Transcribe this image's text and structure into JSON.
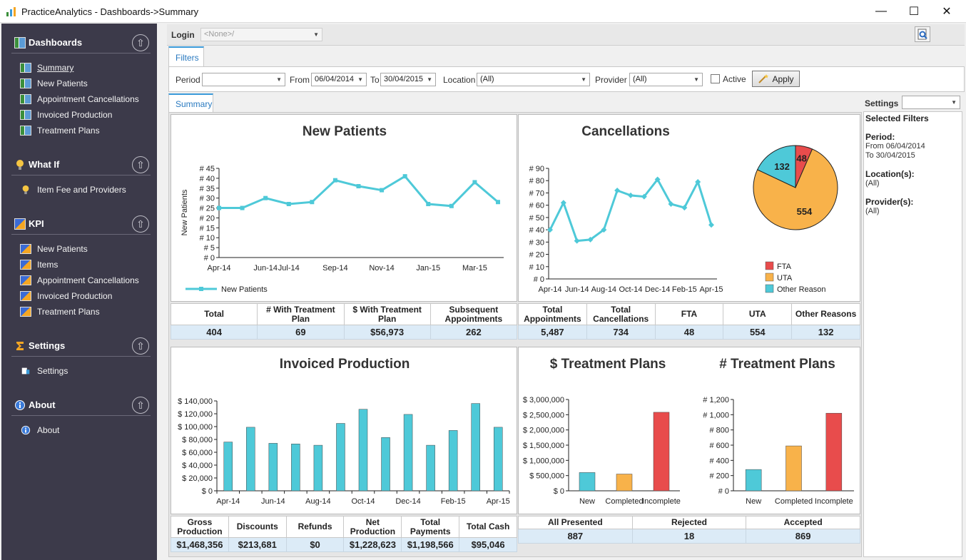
{
  "window": {
    "title": "PracticeAnalytics - Dashboards->Summary",
    "minimize": "—",
    "maximize": "☐",
    "close": "✕"
  },
  "sidebar": {
    "sections": [
      {
        "label": "Dashboards",
        "items": [
          "Summary",
          "New Patients",
          "Appointment Cancellations",
          "Invoiced Production",
          "Treatment Plans"
        ]
      },
      {
        "label": "What If",
        "items": [
          "Item Fee and Providers"
        ]
      },
      {
        "label": "KPI",
        "items": [
          "New Patients",
          "Items",
          "Appointment Cancellations",
          "Invoiced Production",
          "Treatment Plans"
        ]
      },
      {
        "label": "Settings",
        "items": [
          "Settings"
        ]
      },
      {
        "label": "About",
        "items": [
          "About"
        ]
      }
    ],
    "collapse_glyph": "⇧"
  },
  "toolbar": {
    "login_label": "Login",
    "login_value": "<None>/"
  },
  "tabs": {
    "filters": "Filters",
    "summary": "Summary"
  },
  "filters": {
    "period_label": "Period",
    "period_value": "",
    "from_label": "From",
    "from_value": "06/04/2014",
    "to_label": "To",
    "to_value": "30/04/2015",
    "location_label": "Location",
    "location_value": "(All)",
    "provider_label": "Provider",
    "provider_value": "(All)",
    "active_label": "Active",
    "apply_label": "Apply"
  },
  "settings": {
    "label": "Settings",
    "value": "",
    "selected_filters": "Selected Filters",
    "period_h": "Period:",
    "period_from": "From 06/04/2014",
    "period_to": "To 30/04/2015",
    "location_h": "Location(s):",
    "location_v": "(All)",
    "provider_h": "Provider(s):",
    "provider_v": "(All)"
  },
  "panels": {
    "new_patients": {
      "title": "New Patients",
      "stats_headers": [
        "Total",
        "# With Treatment Plan",
        "$ With Treatment Plan",
        "Subsequent Appointments"
      ],
      "stats_values": [
        "404",
        "69",
        "$56,973",
        "262"
      ]
    },
    "cancellations": {
      "title": "Cancellations",
      "stats_headers": [
        "Total Appointments",
        "Total Cancellations",
        "FTA",
        "UTA",
        "Other Reasons"
      ],
      "stats_values": [
        "5,487",
        "734",
        "48",
        "554",
        "132"
      ]
    },
    "invoiced": {
      "title": "Invoiced Production",
      "stats_headers": [
        "Gross Production",
        "Discounts",
        "Refunds",
        "Net Production",
        "Total Payments",
        "Total Cash"
      ],
      "stats_values": [
        "$1,468,356",
        "$213,681",
        "$0",
        "$1,228,623",
        "$1,198,566",
        "$95,046"
      ]
    },
    "treatment": {
      "title_dollar": "$ Treatment Plans",
      "title_count": "# Treatment Plans",
      "stats_headers": [
        "All Presented",
        "Rejected",
        "Accepted"
      ],
      "stats_values": [
        "887",
        "18",
        "869"
      ]
    }
  },
  "colors": {
    "accent": "#3a9ad9",
    "line": "#4ec9d8",
    "bar": "#4ec9d8",
    "fta": "#e84c4c",
    "uta": "#f8b24a",
    "other": "#4ec9d8",
    "sidebar": "#3c3a4a"
  },
  "chart_data": [
    {
      "id": "new_patients",
      "type": "line",
      "x": [
        "Apr-14",
        "May-14",
        "Jun-14",
        "Jul-14",
        "Aug-14",
        "Sep-14",
        "Oct-14",
        "Nov-14",
        "Dec-14",
        "Jan-15",
        "Feb-15",
        "Mar-15",
        "Apr-15"
      ],
      "xticks": [
        "Apr-14",
        "Jun-14",
        "Jul-14",
        "Sep-14",
        "Nov-14",
        "Jan-15",
        "Mar-15"
      ],
      "series": [
        {
          "name": "New Patients",
          "values": [
            25,
            25,
            30,
            27,
            28,
            39,
            36,
            34,
            41,
            27,
            26,
            38,
            28
          ]
        }
      ],
      "ylabel": "New Patients",
      "ylim": [
        0,
        45
      ],
      "yticks": [
        "# 0",
        "# 5",
        "# 10",
        "# 15",
        "# 20",
        "# 25",
        "# 30",
        "# 35",
        "# 40",
        "# 45"
      ]
    },
    {
      "id": "cancellations_line",
      "type": "line",
      "x": [
        "Apr-14",
        "May-14",
        "Jun-14",
        "Jul-14",
        "Aug-14",
        "Sep-14",
        "Oct-14",
        "Nov-14",
        "Dec-14",
        "Jan-15",
        "Feb-15",
        "Mar-15",
        "Apr-15"
      ],
      "xticks": [
        "Apr-14",
        "Jun-14",
        "Aug-14",
        "Oct-14",
        "Dec-14",
        "Feb-15",
        "Apr-15"
      ],
      "values": [
        40,
        62,
        31,
        32,
        40,
        72,
        68,
        67,
        81,
        61,
        58,
        79,
        44
      ],
      "ylim": [
        0,
        90
      ],
      "yticks": [
        "# 0",
        "# 10",
        "# 20",
        "# 30",
        "# 40",
        "# 50",
        "# 60",
        "# 70",
        "# 80",
        "# 90"
      ]
    },
    {
      "id": "cancellations_pie",
      "type": "pie",
      "labels": [
        "FTA",
        "UTA",
        "Other Reason"
      ],
      "values": [
        48,
        554,
        132
      ]
    },
    {
      "id": "invoiced",
      "type": "bar",
      "categories": [
        "Apr-14",
        "May-14",
        "Jun-14",
        "Jul-14",
        "Aug-14",
        "Sep-14",
        "Oct-14",
        "Nov-14",
        "Dec-14",
        "Jan-15",
        "Feb-15",
        "Mar-15",
        "Apr-15"
      ],
      "xticks": [
        "Apr-14",
        "Jun-14",
        "Aug-14",
        "Oct-14",
        "Dec-14",
        "Feb-15",
        "Apr-15"
      ],
      "values": [
        76000,
        99000,
        74000,
        73000,
        71000,
        105000,
        127000,
        83000,
        119000,
        71000,
        94000,
        136000,
        99000
      ],
      "ylim": [
        0,
        140000
      ],
      "yticks": [
        "$ 0",
        "$ 20,000",
        "$ 40,000",
        "$ 60,000",
        "$ 80,000",
        "$ 100,000",
        "$ 120,000",
        "$ 140,000"
      ]
    },
    {
      "id": "treatment_dollar",
      "type": "bar",
      "categories": [
        "New",
        "Completed",
        "Incomplete"
      ],
      "values": [
        600000,
        550000,
        2580000
      ],
      "ylim": [
        0,
        3000000
      ],
      "yticks": [
        "$ 0",
        "$ 500,000",
        "$ 1,000,000",
        "$ 1,500,000",
        "$ 2,000,000",
        "$ 2,500,000",
        "$ 3,000,000"
      ]
    },
    {
      "id": "treatment_count",
      "type": "bar",
      "categories": [
        "New",
        "Completed",
        "Incomplete"
      ],
      "values": [
        280,
        590,
        1020
      ],
      "ylim": [
        0,
        1200
      ],
      "yticks": [
        "# 0",
        "# 200",
        "# 400",
        "# 600",
        "# 800",
        "# 1,000",
        "# 1,200"
      ]
    }
  ]
}
